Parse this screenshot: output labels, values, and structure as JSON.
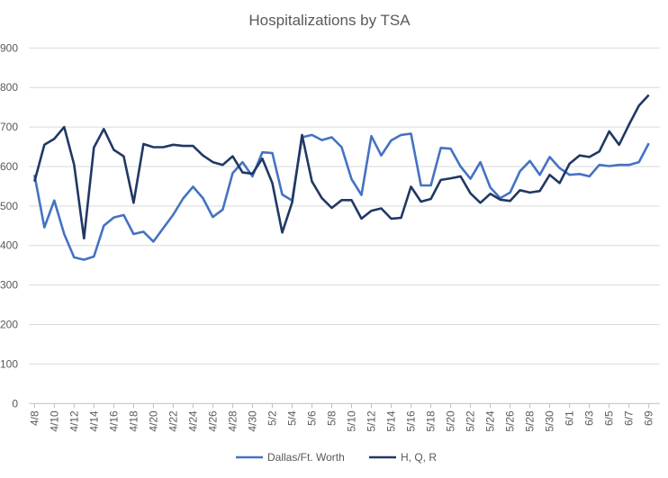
{
  "chart_data": {
    "type": "line",
    "title": "Hospitalizations by TSA",
    "xlabel": "",
    "ylabel": "",
    "ylim": [
      0,
      900
    ],
    "yticks": [
      0,
      100,
      200,
      300,
      400,
      500,
      600,
      700,
      800,
      900
    ],
    "grid": true,
    "legend": "bottom",
    "x": [
      "4/8",
      "4/9",
      "4/10",
      "4/11",
      "4/12",
      "4/13",
      "4/14",
      "4/15",
      "4/16",
      "4/17",
      "4/18",
      "4/19",
      "4/20",
      "4/21",
      "4/22",
      "4/23",
      "4/24",
      "4/25",
      "4/26",
      "4/27",
      "4/28",
      "4/29",
      "4/30",
      "5/1",
      "5/2",
      "5/3",
      "5/4",
      "5/5",
      "5/6",
      "5/7",
      "5/8",
      "5/9",
      "5/10",
      "5/11",
      "5/12",
      "5/13",
      "5/14",
      "5/15",
      "5/16",
      "5/17",
      "5/18",
      "5/19",
      "5/20",
      "5/21",
      "5/22",
      "5/23",
      "5/24",
      "5/25",
      "5/26",
      "5/27",
      "5/28",
      "5/29",
      "5/30",
      "5/31",
      "6/1",
      "6/2",
      "6/3",
      "6/4",
      "6/5",
      "6/6",
      "6/7",
      "6/8",
      "6/9"
    ],
    "x_tick_labels": [
      "4/8",
      "4/10",
      "4/12",
      "4/14",
      "4/16",
      "4/18",
      "4/20",
      "4/22",
      "4/24",
      "4/26",
      "4/28",
      "4/30",
      "5/2",
      "5/4",
      "5/6",
      "5/8",
      "5/10",
      "5/12",
      "5/14",
      "5/16",
      "5/18",
      "5/20",
      "5/22",
      "5/24",
      "5/26",
      "5/28",
      "5/30",
      "6/1",
      "6/3",
      "6/5",
      "6/7",
      "6/9"
    ],
    "series": [
      {
        "name": "Dallas/Ft. Worth",
        "color": "#4472C4",
        "values": [
          579,
          446,
          514,
          429,
          370,
          364,
          372,
          450,
          471,
          477,
          429,
          435,
          410,
          444,
          478,
          519,
          549,
          520,
          472,
          491,
          583,
          611,
          575,
          636,
          634,
          529,
          514,
          674,
          680,
          667,
          674,
          649,
          568,
          528,
          677,
          628,
          666,
          680,
          683,
          552,
          552,
          647,
          645,
          600,
          569,
          611,
          547,
          520,
          534,
          588,
          614,
          579,
          624,
          596,
          579,
          581,
          575,
          604,
          601,
          604,
          604,
          611,
          659
        ]
      },
      {
        "name": "H, Q, R",
        "color": "#203864",
        "values": [
          562,
          655,
          670,
          700,
          605,
          418,
          648,
          695,
          642,
          626,
          508,
          657,
          649,
          649,
          655,
          652,
          652,
          628,
          611,
          604,
          626,
          585,
          582,
          620,
          558,
          433,
          509,
          680,
          562,
          520,
          495,
          515,
          515,
          468,
          488,
          494,
          468,
          470,
          549,
          511,
          518,
          566,
          570,
          575,
          532,
          508,
          531,
          516,
          513,
          540,
          534,
          538,
          579,
          558,
          607,
          628,
          624,
          638,
          689,
          655,
          706,
          754,
          781
        ]
      }
    ]
  }
}
